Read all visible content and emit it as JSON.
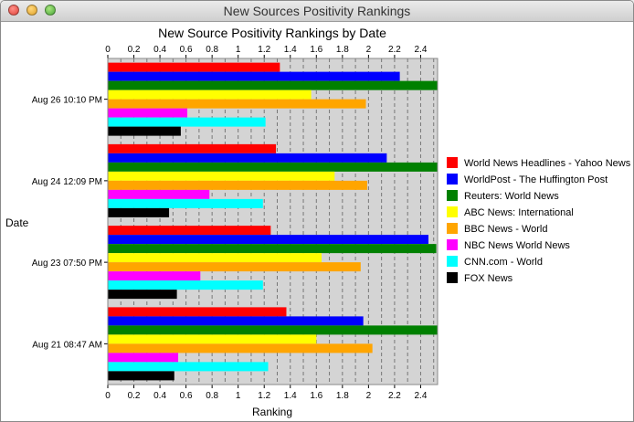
{
  "window": {
    "title": "New Sources Positivity Rankings"
  },
  "chart_data": {
    "type": "bar",
    "orientation": "horizontal",
    "title": "New Source Positivity Rankings by Date",
    "xlabel": "Ranking",
    "ylabel": "Date",
    "xlim": [
      0,
      2.53
    ],
    "xticks": [
      "0",
      "0.2",
      "0.4",
      "0.6",
      "0.8",
      "1",
      "1.2",
      "1.4",
      "1.6",
      "1.8",
      "2",
      "2.2",
      "2.4"
    ],
    "x_axis_top_and_bottom": true,
    "grid": "vertical dashed",
    "legend_position": "right",
    "categories": [
      "Aug 26 10:10 PM",
      "Aug 24 12:09 PM",
      "Aug 23 07:50 PM",
      "Aug 21 08:47 AM"
    ],
    "series": [
      {
        "name": "World News Headlines - Yahoo News",
        "color": "#ff0000",
        "values": [
          1.32,
          1.29,
          1.25,
          1.37
        ]
      },
      {
        "name": "WorldPost - The Huffington Post",
        "color": "#0000ff",
        "values": [
          2.24,
          2.14,
          2.46,
          1.96
        ]
      },
      {
        "name": "Reuters: World News",
        "color": "#008000",
        "values": [
          2.53,
          2.53,
          2.52,
          2.53
        ]
      },
      {
        "name": "ABC News: International",
        "color": "#ffff00",
        "values": [
          1.56,
          1.74,
          1.64,
          1.6
        ]
      },
      {
        "name": "BBC News - World",
        "color": "#ffa500",
        "values": [
          1.98,
          1.99,
          1.94,
          2.03
        ]
      },
      {
        "name": "NBC News World News",
        "color": "#ff00ff",
        "values": [
          0.61,
          0.78,
          0.71,
          0.54
        ]
      },
      {
        "name": "CNN.com - World",
        "color": "#00ffff",
        "values": [
          1.21,
          1.19,
          1.19,
          1.23
        ]
      },
      {
        "name": "FOX News",
        "color": "#000000",
        "values": [
          0.56,
          0.47,
          0.53,
          0.51
        ]
      }
    ]
  }
}
